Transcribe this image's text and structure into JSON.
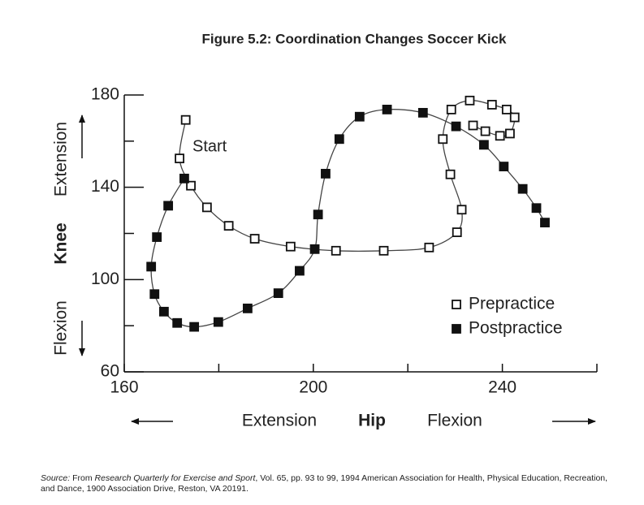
{
  "chart_data": {
    "type": "scatter-line",
    "title": "Figure 5.2: Coordination Changes Soccer Kick",
    "annotation": "Start",
    "y_label": {
      "lower": "Flexion",
      "main": "Knee",
      "upper": "Extension"
    },
    "x_label": {
      "left": "Extension",
      "main": "Hip",
      "right": "Flexion"
    },
    "xlim": [
      160,
      260
    ],
    "xticks": [
      160,
      200,
      240
    ],
    "x_minor_ticks": [
      180,
      220,
      260
    ],
    "ylim": [
      60,
      180
    ],
    "yticks": [
      60,
      100,
      140,
      180
    ],
    "y_minor_ticks": [
      80,
      120,
      160
    ],
    "legend": "lower right",
    "series": [
      {
        "name": "Prepractice",
        "marker": "open",
        "color": "#111111",
        "x": [
          173.0,
          171.7,
          174.1,
          177.5,
          182.1,
          187.6,
          195.2,
          204.8,
          214.9,
          224.5,
          230.4,
          231.4,
          229.0,
          227.4,
          229.2,
          233.1,
          237.8,
          240.9,
          242.6,
          241.6,
          239.5,
          236.4,
          233.8
        ],
        "y": [
          169.2,
          152.5,
          140.7,
          131.3,
          123.3,
          117.7,
          114.3,
          112.5,
          112.5,
          113.9,
          120.5,
          130.3,
          145.6,
          160.9,
          173.7,
          177.6,
          175.8,
          173.7,
          170.3,
          163.3,
          162.3,
          164.3,
          166.8
        ]
      },
      {
        "name": "Postpractice",
        "marker": "filled",
        "color": "#111111",
        "x": [
          172.7,
          169.3,
          166.9,
          165.7,
          166.4,
          168.4,
          171.2,
          174.8,
          179.9,
          186.1,
          192.6,
          197.1,
          200.3,
          201.0,
          202.6,
          205.5,
          209.8,
          215.6,
          223.2,
          230.2,
          236.1,
          240.3,
          244.3,
          247.2,
          249.0
        ],
        "y": [
          143.8,
          132.0,
          118.4,
          105.6,
          93.7,
          86.1,
          81.2,
          79.5,
          81.6,
          87.5,
          94.1,
          103.8,
          113.2,
          128.2,
          145.9,
          160.9,
          170.6,
          173.7,
          172.3,
          166.4,
          158.4,
          149.0,
          139.3,
          131.0,
          124.7
        ]
      }
    ],
    "source": [
      {
        "text": "Source:",
        "italic": true
      },
      {
        "text": " From ",
        "italic": false
      },
      {
        "text": "Research Quarterly for Exercise and Sport",
        "italic": true
      },
      {
        "text": ", Vol. 65, pp. 93 to 99, 1994 American Association for Health, Physical Education, Recreation, and Dance, 1900 Association Drive, Reston, VA 20191.",
        "italic": false
      }
    ]
  }
}
